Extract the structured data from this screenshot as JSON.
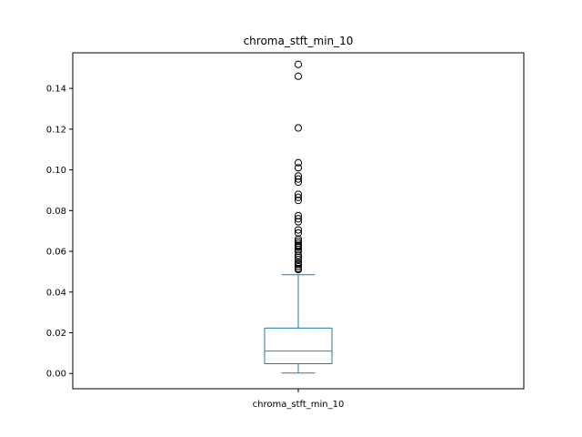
{
  "chart_data": {
    "type": "box",
    "title": "chroma_stft_min_10",
    "xlabel": "",
    "ylabel": "",
    "categories": [
      "chroma_stft_min_10"
    ],
    "ylim": [
      -0.0075,
      0.1575
    ],
    "yticks": [
      0.0,
      0.02,
      0.04,
      0.06,
      0.08,
      0.1,
      0.12,
      0.14
    ],
    "ytick_labels": [
      "0.00",
      "0.02",
      "0.04",
      "0.06",
      "0.08",
      "0.10",
      "0.12",
      "0.14"
    ],
    "grid": false,
    "box": {
      "whisker_low": 0.0002,
      "q1": 0.0048,
      "median": 0.011,
      "q3": 0.0223,
      "whisker_high": 0.0485,
      "outliers": [
        0.1518,
        0.146,
        0.1206,
        0.1035,
        0.101,
        0.097,
        0.0955,
        0.094,
        0.088,
        0.0865,
        0.085,
        0.0775,
        0.076,
        0.0745,
        0.0705,
        0.069,
        0.066,
        0.065,
        0.064,
        0.063,
        0.0625,
        0.062,
        0.061,
        0.06,
        0.058,
        0.057,
        0.056,
        0.0545,
        0.0535,
        0.0525,
        0.0515,
        0.051
      ]
    },
    "colors": {
      "box": "#1f77b4",
      "median": "#2ca02c",
      "outlier": "#000000",
      "frame": "#000000"
    }
  }
}
